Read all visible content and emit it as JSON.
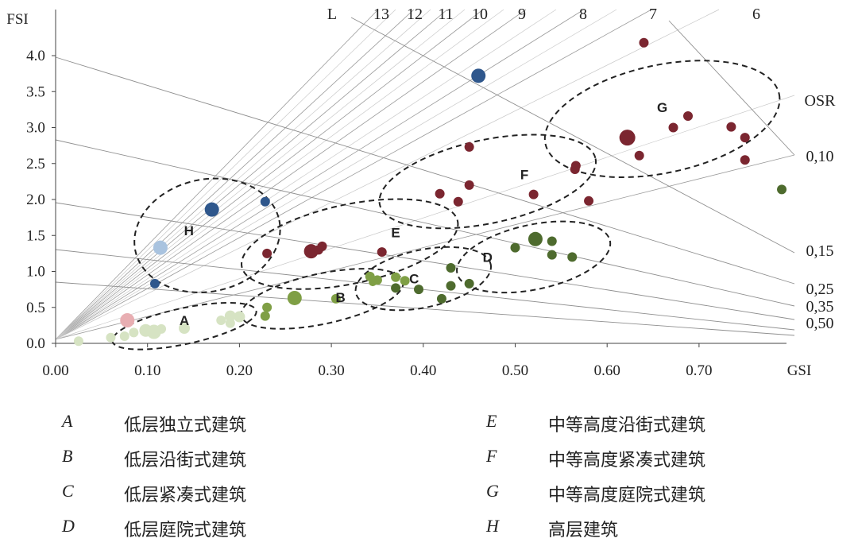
{
  "chart_data": {
    "type": "scatter",
    "title": "",
    "xlabel": "GSI",
    "ylabel": "FSI",
    "xlim": [
      0,
      0.8
    ],
    "ylim": [
      0,
      4.35
    ],
    "x_ticks": [
      "0.00",
      "0.10",
      "0.20",
      "0.30",
      "0.40",
      "0.50",
      "0.60",
      "0.70"
    ],
    "y_ticks": [
      "0.0",
      "0.5",
      "1.0",
      "1.5",
      "2.0",
      "2.5",
      "3.0",
      "3.5",
      "4.0"
    ],
    "l_lines": {
      "name": "L",
      "values": [
        "13",
        "12",
        "11",
        "10",
        "9",
        "8",
        "7",
        "6"
      ],
      "extra_lines": 8
    },
    "osr_lines": {
      "name": "OSR",
      "labels": [
        "0,10",
        "0,15",
        "0,25",
        "0,35",
        "0,50"
      ]
    },
    "clusters": [
      {
        "label": "A",
        "cx": 0.14,
        "cy": 0.24,
        "rx": 0.08,
        "ry": 0.25
      },
      {
        "label": "B",
        "cx": 0.29,
        "cy": 0.62,
        "rx": 0.09,
        "ry": 0.35
      },
      {
        "label": "C",
        "cx": 0.4,
        "cy": 0.9,
        "rx": 0.075,
        "ry": 0.4
      },
      {
        "label": "D",
        "cx": 0.52,
        "cy": 1.2,
        "rx": 0.085,
        "ry": 0.45
      },
      {
        "label": "E",
        "cx": 0.32,
        "cy": 1.38,
        "rx": 0.12,
        "ry": 0.55
      },
      {
        "label": "F",
        "cx": 0.47,
        "cy": 2.25,
        "rx": 0.12,
        "ry": 0.58
      },
      {
        "label": "G",
        "cx": 0.66,
        "cy": 3.12,
        "rx": 0.13,
        "ry": 0.75
      },
      {
        "label": "H",
        "cx": 0.165,
        "cy": 1.5,
        "rx": 0.08,
        "ry": 0.78
      }
    ],
    "series": [
      {
        "color": "#d6e3c3",
        "points": [
          {
            "x": 0.025,
            "y": 0.03,
            "s": 6
          },
          {
            "x": 0.06,
            "y": 0.08,
            "s": 6
          },
          {
            "x": 0.075,
            "y": 0.1,
            "s": 6
          },
          {
            "x": 0.085,
            "y": 0.15,
            "s": 6
          },
          {
            "x": 0.098,
            "y": 0.18,
            "s": 8
          },
          {
            "x": 0.107,
            "y": 0.16,
            "s": 9
          },
          {
            "x": 0.115,
            "y": 0.2,
            "s": 6
          },
          {
            "x": 0.14,
            "y": 0.21,
            "s": 7
          },
          {
            "x": 0.18,
            "y": 0.32,
            "s": 6
          },
          {
            "x": 0.19,
            "y": 0.38,
            "s": 7
          },
          {
            "x": 0.2,
            "y": 0.37,
            "s": 7
          },
          {
            "x": 0.19,
            "y": 0.28,
            "s": 6
          }
        ]
      },
      {
        "color": "#e8aeb2",
        "points": [
          {
            "x": 0.078,
            "y": 0.32,
            "s": 9
          }
        ]
      },
      {
        "color": "#7f9f45",
        "points": [
          {
            "x": 0.228,
            "y": 0.38,
            "s": 6
          },
          {
            "x": 0.23,
            "y": 0.5,
            "s": 6
          },
          {
            "x": 0.26,
            "y": 0.63,
            "s": 9
          },
          {
            "x": 0.305,
            "y": 0.62,
            "s": 6
          },
          {
            "x": 0.342,
            "y": 0.93,
            "s": 6
          },
          {
            "x": 0.35,
            "y": 0.88,
            "s": 6
          },
          {
            "x": 0.37,
            "y": 0.92,
            "s": 6
          },
          {
            "x": 0.38,
            "y": 0.87,
            "s": 6
          },
          {
            "x": 0.345,
            "y": 0.85,
            "s": 5
          }
        ]
      },
      {
        "color": "#4e6b2e",
        "points": [
          {
            "x": 0.37,
            "y": 0.77,
            "s": 6
          },
          {
            "x": 0.395,
            "y": 0.75,
            "s": 6
          },
          {
            "x": 0.42,
            "y": 0.62,
            "s": 6
          },
          {
            "x": 0.43,
            "y": 1.05,
            "s": 6
          },
          {
            "x": 0.43,
            "y": 0.8,
            "s": 6
          },
          {
            "x": 0.45,
            "y": 0.83,
            "s": 6
          },
          {
            "x": 0.5,
            "y": 1.33,
            "s": 6
          },
          {
            "x": 0.522,
            "y": 1.45,
            "s": 9
          },
          {
            "x": 0.54,
            "y": 1.42,
            "s": 6
          },
          {
            "x": 0.54,
            "y": 1.23,
            "s": 6
          },
          {
            "x": 0.562,
            "y": 1.2,
            "s": 6
          },
          {
            "x": 0.79,
            "y": 2.14,
            "s": 6
          }
        ]
      },
      {
        "color": "#7b2630",
        "points": [
          {
            "x": 0.23,
            "y": 1.25,
            "s": 6
          },
          {
            "x": 0.278,
            "y": 1.28,
            "s": 9
          },
          {
            "x": 0.29,
            "y": 1.35,
            "s": 6
          },
          {
            "x": 0.286,
            "y": 1.3,
            "s": 6
          },
          {
            "x": 0.355,
            "y": 1.27,
            "s": 6
          },
          {
            "x": 0.418,
            "y": 2.08,
            "s": 6
          },
          {
            "x": 0.438,
            "y": 1.97,
            "s": 6
          },
          {
            "x": 0.45,
            "y": 2.73,
            "s": 6
          },
          {
            "x": 0.45,
            "y": 2.2,
            "s": 6
          },
          {
            "x": 0.52,
            "y": 2.07,
            "s": 6
          },
          {
            "x": 0.565,
            "y": 2.42,
            "s": 6
          },
          {
            "x": 0.566,
            "y": 2.47,
            "s": 6
          },
          {
            "x": 0.58,
            "y": 1.98,
            "s": 6
          },
          {
            "x": 0.622,
            "y": 2.86,
            "s": 10
          },
          {
            "x": 0.635,
            "y": 2.61,
            "s": 6
          },
          {
            "x": 0.64,
            "y": 4.18,
            "s": 6
          },
          {
            "x": 0.672,
            "y": 3.0,
            "s": 6
          },
          {
            "x": 0.688,
            "y": 3.16,
            "s": 6
          },
          {
            "x": 0.735,
            "y": 3.01,
            "s": 6
          },
          {
            "x": 0.75,
            "y": 2.86,
            "s": 6
          },
          {
            "x": 0.75,
            "y": 2.55,
            "s": 6
          }
        ]
      },
      {
        "color": "#2f578c",
        "points": [
          {
            "x": 0.108,
            "y": 0.83,
            "s": 6
          },
          {
            "x": 0.17,
            "y": 1.86,
            "s": 9
          },
          {
            "x": 0.228,
            "y": 1.97,
            "s": 6
          },
          {
            "x": 0.46,
            "y": 3.72,
            "s": 9
          }
        ]
      },
      {
        "color": "#a9c3df",
        "points": [
          {
            "x": 0.114,
            "y": 1.33,
            "s": 9
          }
        ]
      }
    ]
  },
  "legend": [
    {
      "key": "A",
      "desc": "低层独立式建筑"
    },
    {
      "key": "B",
      "desc": "低层沿街式建筑"
    },
    {
      "key": "C",
      "desc": "低层紧凑式建筑"
    },
    {
      "key": "D",
      "desc": "低层庭院式建筑"
    },
    {
      "key": "E",
      "desc": "中等高度沿街式建筑"
    },
    {
      "key": "F",
      "desc": "中等高度紧凑式建筑"
    },
    {
      "key": "G",
      "desc": "中等高度庭院式建筑"
    },
    {
      "key": "H",
      "desc": "高层建筑"
    }
  ]
}
